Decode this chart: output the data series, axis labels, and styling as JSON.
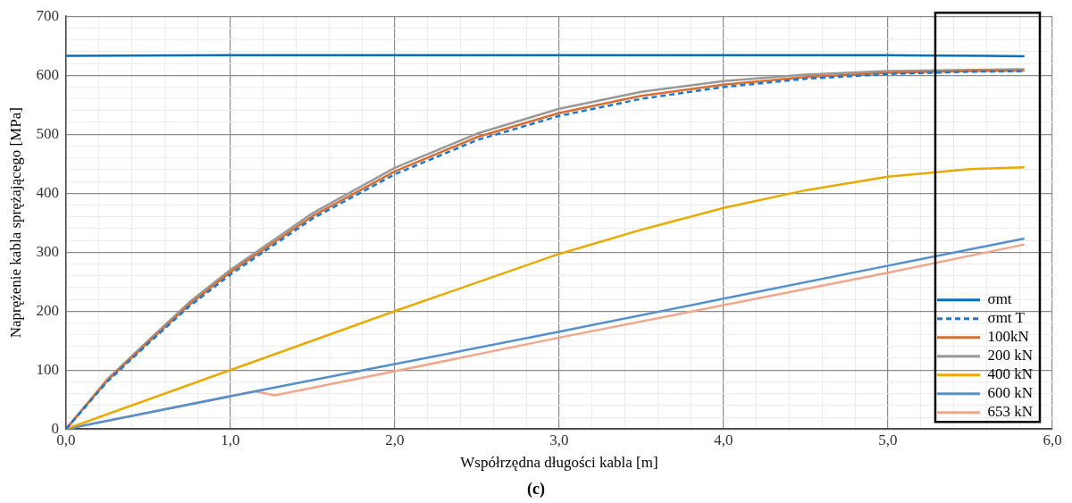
{
  "chart_data": {
    "type": "line",
    "xlabel": "Współrzędna długości kabla [m]",
    "ylabel": "Naprężenie kabla sprężającego [MPa]",
    "annotations": [
      "(c)"
    ],
    "xlim": [
      0,
      6
    ],
    "ylim": [
      0,
      700
    ],
    "xticks": [
      {
        "value": 0,
        "label": "0,0"
      },
      {
        "value": 0.2,
        "label": null
      },
      {
        "value": 0.4,
        "label": null
      },
      {
        "value": 0.6,
        "label": null
      },
      {
        "value": 0.8,
        "label": null
      },
      {
        "value": 1,
        "label": "1,0"
      },
      {
        "value": 1.2,
        "label": null
      },
      {
        "value": 1.4,
        "label": null
      },
      {
        "value": 1.6,
        "label": null
      },
      {
        "value": 1.8,
        "label": null
      },
      {
        "value": 2,
        "label": "2,0"
      },
      {
        "value": 2.2,
        "label": null
      },
      {
        "value": 2.4,
        "label": null
      },
      {
        "value": 2.6,
        "label": null
      },
      {
        "value": 2.8,
        "label": null
      },
      {
        "value": 3,
        "label": "3,0"
      },
      {
        "value": 3.2,
        "label": null
      },
      {
        "value": 3.4,
        "label": null
      },
      {
        "value": 3.6,
        "label": null
      },
      {
        "value": 3.8,
        "label": null
      },
      {
        "value": 4,
        "label": "4,0"
      },
      {
        "value": 4.2,
        "label": null
      },
      {
        "value": 4.4,
        "label": null
      },
      {
        "value": 4.6,
        "label": null
      },
      {
        "value": 4.8,
        "label": null
      },
      {
        "value": 5,
        "label": "5,0"
      },
      {
        "value": 5.2,
        "label": null
      },
      {
        "value": 5.4,
        "label": null
      },
      {
        "value": 5.6,
        "label": null
      },
      {
        "value": 5.8,
        "label": null
      },
      {
        "value": 6,
        "label": "6,0"
      }
    ],
    "yticks": [
      0,
      {
        "value": 20,
        "label": null
      },
      {
        "value": 40,
        "label": null
      },
      {
        "value": 60,
        "label": null
      },
      {
        "value": 80,
        "label": null
      },
      100,
      {
        "value": 120,
        "label": null
      },
      {
        "value": 140,
        "label": null
      },
      {
        "value": 160,
        "label": null
      },
      {
        "value": 180,
        "label": null
      },
      200,
      {
        "value": 220,
        "label": null
      },
      {
        "value": 240,
        "label": null
      },
      {
        "value": 260,
        "label": null
      },
      {
        "value": 280,
        "label": null
      },
      300,
      {
        "value": 320,
        "label": null
      },
      {
        "value": 340,
        "label": null
      },
      {
        "value": 360,
        "label": null
      },
      {
        "value": 380,
        "label": null
      },
      400,
      {
        "value": 420,
        "label": null
      },
      {
        "value": 440,
        "label": null
      },
      {
        "value": 460,
        "label": null
      },
      {
        "value": 480,
        "label": null
      },
      500,
      {
        "value": 520,
        "label": null
      },
      {
        "value": 540,
        "label": null
      },
      {
        "value": 560,
        "label": null
      },
      {
        "value": 580,
        "label": null
      },
      600,
      {
        "value": 620,
        "label": null
      },
      {
        "value": 640,
        "label": null
      },
      {
        "value": 660,
        "label": null
      },
      {
        "value": 680,
        "label": null
      },
      700
    ],
    "grid": true,
    "legend": "bottom right",
    "marker": "none",
    "line_style": "solid",
    "series": [
      {
        "name": "σmt",
        "color": "#0070c0",
        "x": [
          0,
          1,
          2,
          3,
          4,
          5,
          5.6,
          5.83
        ],
        "values": [
          633,
          634,
          634,
          634,
          634,
          634,
          633,
          632
        ]
      },
      {
        "name": "σmt T",
        "color": "#1f78d0",
        "line_style": "dashed",
        "x": [
          0,
          0.25,
          0.5,
          0.75,
          1,
          1.5,
          2,
          2.5,
          3,
          3.5,
          4,
          4.5,
          5,
          5.5,
          5.83
        ],
        "values": [
          0,
          80,
          145,
          208,
          262,
          357,
          432,
          490,
          531,
          560,
          580,
          594,
          602,
          606,
          607
        ]
      },
      {
        "name": "100kN",
        "color": "#d86f30",
        "x": [
          0,
          0.25,
          0.5,
          0.75,
          1,
          1.5,
          2,
          2.5,
          3,
          3.5,
          4,
          4.5,
          5,
          5.5,
          5.83
        ],
        "values": [
          0,
          82,
          147,
          211,
          266,
          361,
          437,
          495,
          536,
          565,
          584,
          597,
          604,
          607,
          608
        ]
      },
      {
        "name": "200 kN",
        "color": "#999999",
        "x": [
          0,
          0.25,
          0.5,
          0.75,
          1,
          1.5,
          2,
          2.5,
          3,
          3.5,
          4,
          4.5,
          5,
          5.5,
          5.83
        ],
        "values": [
          0,
          84,
          150,
          215,
          270,
          366,
          443,
          501,
          543,
          572,
          590,
          601,
          607,
          609,
          610
        ]
      },
      {
        "name": "400 kN",
        "color": "#e6aa00",
        "x": [
          0,
          1,
          2,
          3,
          3.5,
          4,
          4.5,
          5,
          5.5,
          5.83
        ],
        "values": [
          0,
          100,
          200,
          297,
          338,
          375,
          405,
          428,
          441,
          444
        ]
      },
      {
        "name": "600 kN",
        "color": "#5590cc",
        "x": [
          0,
          1.15,
          2,
          3,
          4,
          5,
          5.83
        ],
        "values": [
          0,
          64,
          110,
          165,
          221,
          277,
          323
        ]
      },
      {
        "name": "653 kN",
        "color": "#f2a68c",
        "x": [
          0,
          1.15,
          1.27,
          2,
          3,
          4,
          5,
          5.83
        ],
        "values": [
          0,
          64,
          57,
          98,
          155,
          210,
          265,
          313
        ]
      }
    ]
  }
}
